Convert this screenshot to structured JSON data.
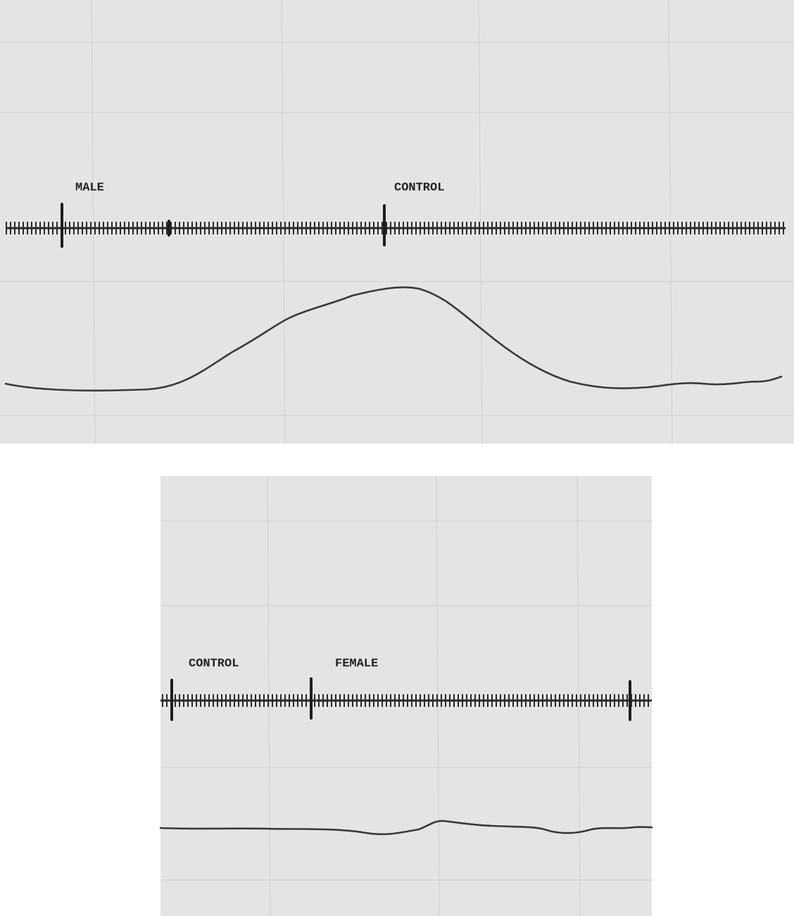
{
  "top_panel": {
    "labels": [
      "MALE",
      "CONTROL"
    ]
  },
  "bottom_panel": {
    "labels": [
      "CONTROL",
      "FEMALE"
    ]
  }
}
